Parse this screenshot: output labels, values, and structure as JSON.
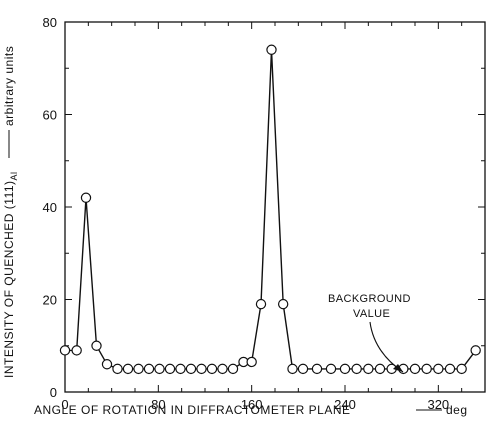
{
  "chart_data": {
    "type": "line",
    "title": "",
    "xlabel": "ANGLE OF ROTATION IN DIFFRACTOMETER PLANE",
    "xunit": "deg",
    "ylabel_main": "INTENSITY OF QUENCHED (111)",
    "ylabel_subscript": "Al",
    "ylabel_unit": "arbitrary units",
    "xlim": [
      0,
      360
    ],
    "ylim": [
      0,
      80
    ],
    "xticks": [
      0,
      80,
      160,
      240,
      320
    ],
    "yticks": [
      0,
      20,
      40,
      60,
      80
    ],
    "grid": false,
    "markers": "open-circle",
    "annotation": {
      "line1": "BACKGROUND",
      "line2": "VALUE",
      "arrow_to": [
        274,
        5
      ]
    },
    "series": [
      {
        "x": [
          0,
          10,
          18,
          27,
          36,
          45,
          54,
          63,
          72,
          81,
          90,
          99,
          108,
          117,
          126,
          135,
          144,
          153,
          160,
          168,
          177,
          187,
          195,
          204,
          216,
          228,
          240,
          250,
          260,
          270,
          280,
          290,
          300,
          310,
          320,
          330,
          340,
          352
        ],
        "y": [
          9,
          9,
          42,
          10,
          6,
          5,
          5,
          5,
          5,
          5,
          5,
          5,
          5,
          5,
          5,
          5,
          5,
          6.5,
          6.5,
          19,
          74,
          19,
          5,
          5,
          5,
          5,
          5,
          5,
          5,
          5,
          5,
          5,
          5,
          5,
          5,
          5,
          5,
          9
        ]
      }
    ]
  }
}
